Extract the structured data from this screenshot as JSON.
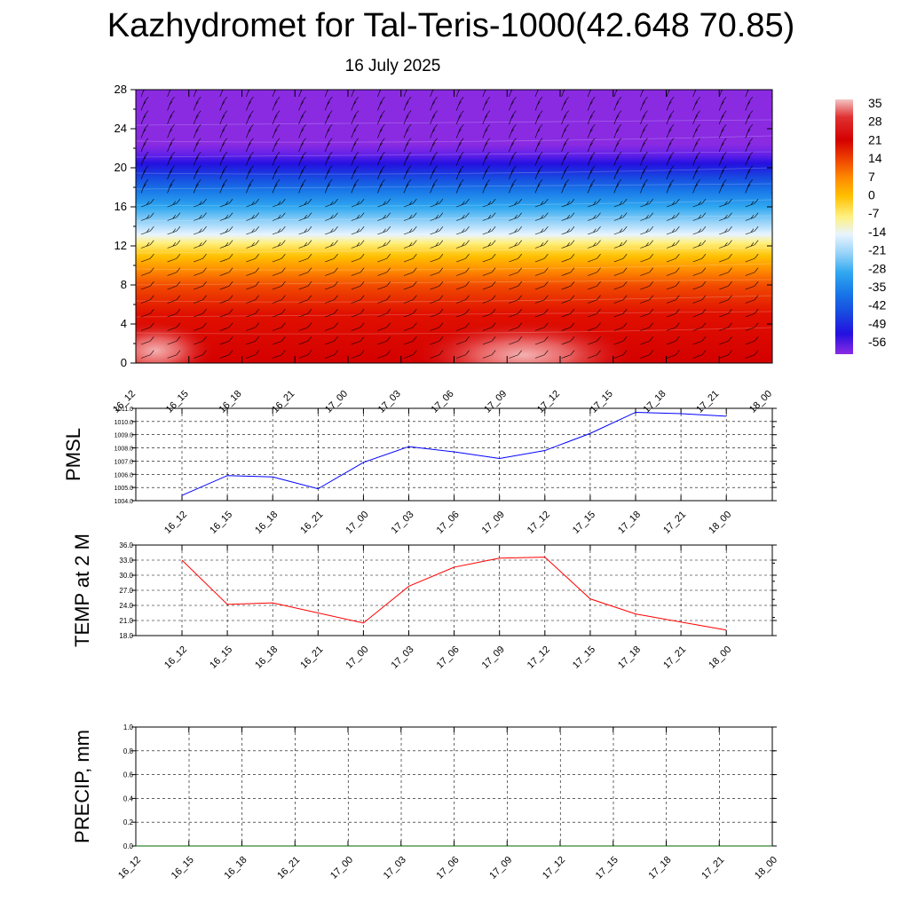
{
  "title": "Kazhydromet for Tal-Teris-1000(42.648 70.85)",
  "subtitle": "16 July 2025",
  "chart_data": [
    {
      "type": "heatmap",
      "name": "vertical-cross-section",
      "y_ticks": [
        "0",
        "4",
        "8",
        "12",
        "16",
        "20",
        "24",
        "28"
      ],
      "ylim": [
        0,
        28
      ],
      "x_ticks": [
        "16_12",
        "16_15",
        "16_18",
        "16_21",
        "17_00",
        "17_03",
        "17_06",
        "17_09",
        "17_12",
        "17_15",
        "17_18",
        "17_21",
        "18_00"
      ],
      "colorbar_labels": [
        "35",
        "28",
        "21",
        "14",
        "7",
        "0",
        "-7",
        "-14",
        "-21",
        "-28",
        "-35",
        "-42",
        "-49",
        "-56"
      ],
      "color_scale": [
        {
          "value": 35,
          "color": "#f4c4c4"
        },
        {
          "value": 28,
          "color": "#e03030"
        },
        {
          "value": 21,
          "color": "#d40000"
        },
        {
          "value": 14,
          "color": "#f04800"
        },
        {
          "value": 7,
          "color": "#ff8c00"
        },
        {
          "value": 0,
          "color": "#ffc000"
        },
        {
          "value": -7,
          "color": "#fff080"
        },
        {
          "value": -14,
          "color": "#e8f4ff"
        },
        {
          "value": -21,
          "color": "#90d0f8"
        },
        {
          "value": -28,
          "color": "#30a8f0"
        },
        {
          "value": -35,
          "color": "#1878e8"
        },
        {
          "value": -42,
          "color": "#1848e0"
        },
        {
          "value": -49,
          "color": "#2410e0"
        },
        {
          "value": -56,
          "color": "#8a2be2"
        }
      ]
    },
    {
      "type": "line",
      "ylabel": "PMSL",
      "x": [
        "16_12",
        "16_15",
        "16_18",
        "16_21",
        "17_00",
        "17_03",
        "17_06",
        "17_09",
        "17_12",
        "17_15",
        "17_18",
        "17_21",
        "18_00"
      ],
      "y_ticks": [
        "1004.0",
        "1005.0",
        "1006.0",
        "1007.0",
        "1008.0",
        "1009.0",
        "1010.0",
        "1011.0"
      ],
      "ylim": [
        1004,
        1011
      ],
      "series": [
        {
          "color": "#0000ff",
          "values": [
            1004.4,
            1005.9,
            1005.8,
            1004.9,
            1006.9,
            1008.1,
            1007.7,
            1007.2,
            1007.8,
            1009.1,
            1010.7,
            1010.6,
            1010.4
          ]
        }
      ]
    },
    {
      "type": "line",
      "ylabel": "TEMP at 2 M",
      "x": [
        "16_12",
        "16_15",
        "16_18",
        "16_21",
        "17_00",
        "17_03",
        "17_06",
        "17_09",
        "17_12",
        "17_15",
        "17_18",
        "17_21",
        "18_00"
      ],
      "y_ticks": [
        "18.0",
        "21.0",
        "24.0",
        "27.0",
        "30.0",
        "33.0",
        "36.0"
      ],
      "ylim": [
        18,
        36
      ],
      "series": [
        {
          "color": "#ff0000",
          "values": [
            33.0,
            24.2,
            24.5,
            22.5,
            20.5,
            27.8,
            31.6,
            33.4,
            33.6,
            25.3,
            22.3,
            20.7,
            19.1
          ]
        }
      ]
    },
    {
      "type": "line",
      "ylabel": "PRECIP, mm",
      "x_ticks": [
        "16_12",
        "16_15",
        "16_18",
        "16_21",
        "17_00",
        "17_03",
        "17_06",
        "17_09",
        "17_12",
        "17_15",
        "17_18",
        "17_21",
        "18_00"
      ],
      "y_ticks": [
        "0.0",
        "0.2",
        "0.4",
        "0.6",
        "0.8",
        "1.0"
      ],
      "ylim": [
        0,
        1
      ],
      "series": [
        {
          "color": "#006400",
          "values": [
            0,
            0,
            0,
            0,
            0,
            0,
            0,
            0,
            0,
            0,
            0,
            0,
            0
          ]
        }
      ]
    }
  ]
}
